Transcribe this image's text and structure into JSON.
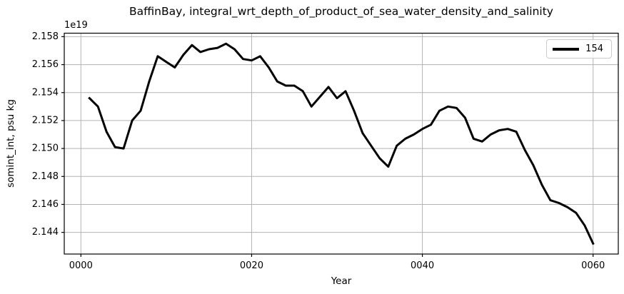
{
  "figure": {
    "title": "BaffinBay, integral_wrt_depth_of_product_of_sea_water_density_and_salinity",
    "offset_text": "1e19",
    "xlabel": "Year",
    "ylabel": "somint_int, psu kg",
    "legend": {
      "label": "154"
    },
    "colors": {
      "line": "#000000",
      "grid": "#b3b3b3",
      "spine": "#000000",
      "text": "#000000",
      "legend_border": "#cccccc",
      "background": "#ffffff"
    }
  },
  "chart_data": {
    "type": "line",
    "title": "BaffinBay, integral_wrt_depth_of_product_of_sea_water_density_and_salinity",
    "xlabel": "Year",
    "ylabel": "somint_int, psu kg",
    "y_offset_multiplier": "1e19",
    "grid": true,
    "legend_position": "upper right",
    "legend_entries": [
      "154"
    ],
    "line_width": 3,
    "line_color": "#000000",
    "xlim": [
      -1.95,
      62.95
    ],
    "ylim": [
      2.14245,
      2.15825
    ],
    "xticks": {
      "values": [
        0,
        20,
        40,
        60
      ],
      "labels": [
        "0000",
        "0020",
        "0040",
        "0060"
      ]
    },
    "yticks": {
      "values": [
        2.144,
        2.146,
        2.148,
        2.15,
        2.152,
        2.154,
        2.156,
        2.158
      ],
      "labels": [
        "2.144",
        "2.146",
        "2.148",
        "2.150",
        "2.152",
        "2.154",
        "2.156",
        "2.158"
      ]
    },
    "series": [
      {
        "name": "154",
        "x": [
          1,
          2,
          3,
          4,
          5,
          6,
          7,
          8,
          9,
          10,
          11,
          12,
          13,
          14,
          15,
          16,
          17,
          18,
          19,
          20,
          21,
          22,
          23,
          24,
          25,
          26,
          27,
          28,
          29,
          30,
          31,
          32,
          33,
          34,
          35,
          36,
          37,
          38,
          39,
          40,
          41,
          42,
          43,
          44,
          45,
          46,
          47,
          48,
          49,
          50,
          51,
          52,
          53,
          54,
          55,
          56,
          57,
          58,
          59,
          60
        ],
        "y": [
          2.1536,
          2.153,
          2.1512,
          2.1501,
          2.15,
          2.152,
          2.1527,
          2.1548,
          2.1566,
          2.1562,
          2.1558,
          2.1567,
          2.1574,
          2.1569,
          2.1571,
          2.1572,
          2.1575,
          2.1571,
          2.1564,
          2.1563,
          2.1566,
          2.1558,
          2.1548,
          2.1545,
          2.1545,
          2.1541,
          2.153,
          2.1537,
          2.1544,
          2.1536,
          2.1541,
          2.1527,
          2.1511,
          2.1502,
          2.1493,
          2.1487,
          2.1502,
          2.1507,
          2.151,
          2.1514,
          2.1517,
          2.1527,
          2.153,
          2.1529,
          2.1522,
          2.1507,
          2.1505,
          2.151,
          2.1513,
          2.1514,
          2.1512,
          2.1499,
          2.1488,
          2.1474,
          2.1463,
          2.1461,
          2.1458,
          2.1454,
          2.1445,
          2.1432
        ]
      }
    ]
  }
}
